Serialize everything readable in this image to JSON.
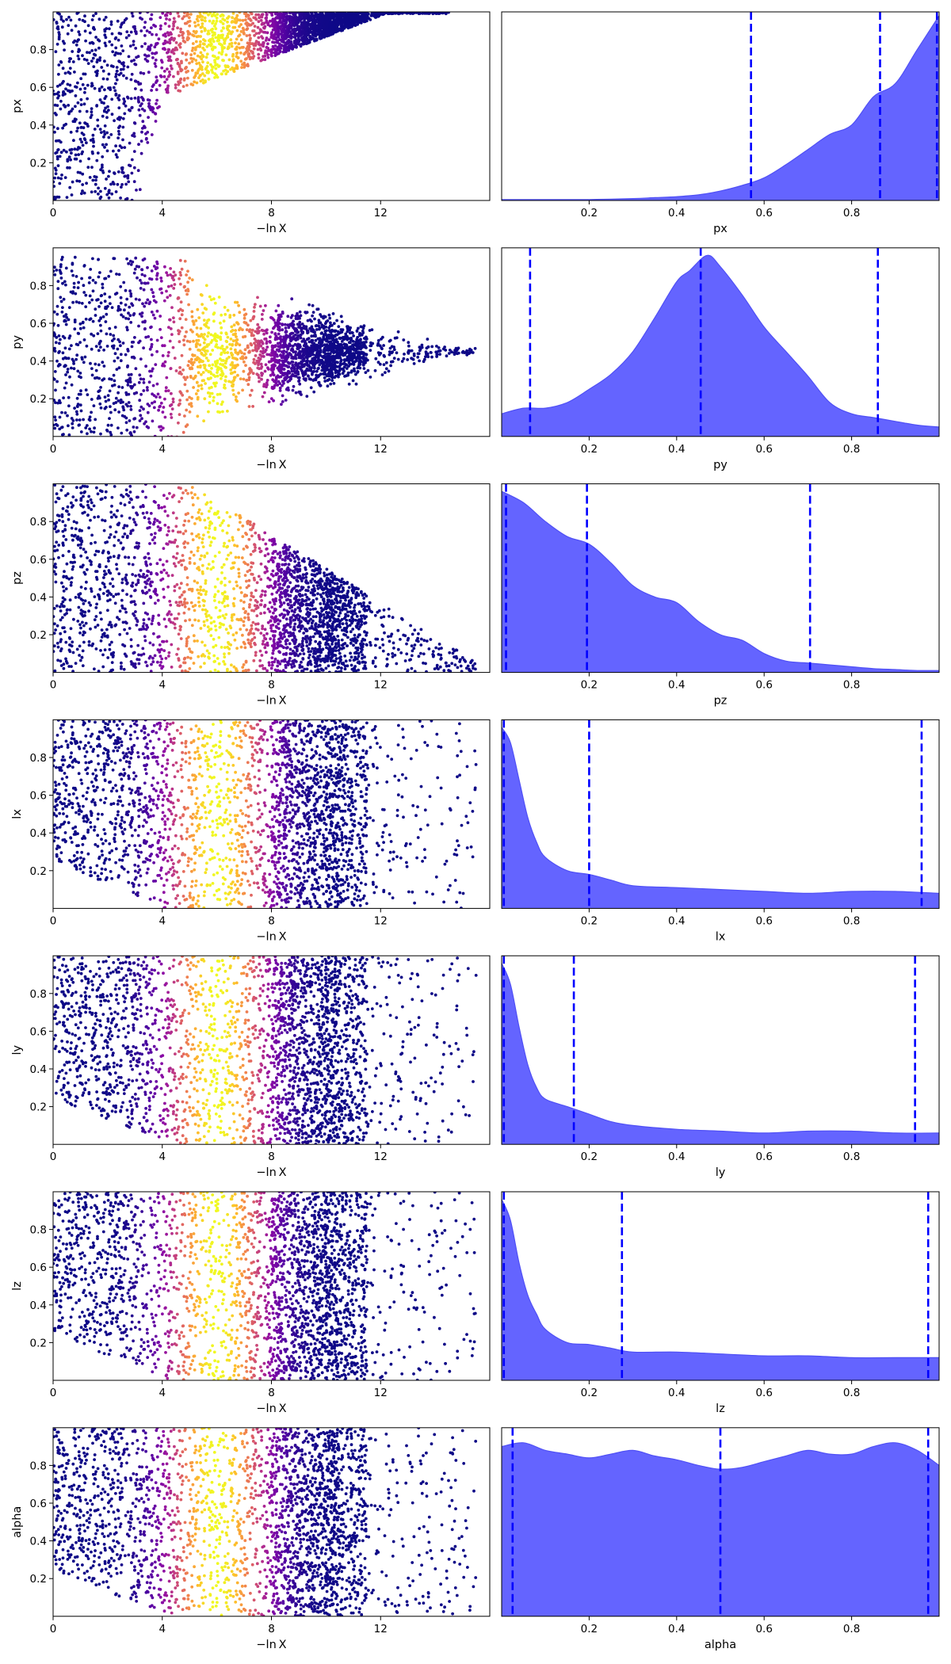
{
  "chart_data": {
    "type": "scatter",
    "layout": "7 rows x 2 columns; left column: trace scatter of parameter vs -ln X colored by posterior weight (plasma colormap); right column: filled marginal posterior density with dashed quantile lines",
    "trace_x_label": "−ln X",
    "trace_x_ticks": [
      0,
      4,
      8,
      12
    ],
    "trace_x_range": [
      0,
      16
    ],
    "y_range": [
      0,
      1
    ],
    "param_ticks": [
      0.2,
      0.4,
      0.6,
      0.8
    ],
    "param_tick_labels": [
      "0.2",
      "0.4",
      "0.6",
      "0.8"
    ],
    "scatter_colormap": "plasma",
    "density_fill_color": "#6464ff",
    "density_line_color": "#4f4ff5",
    "quantile_line_color": "#0000ff",
    "quantile_line_style": "dashed",
    "panels": [
      {
        "param": "px",
        "marginal": {
          "x": [
            0,
            0.1,
            0.2,
            0.3,
            0.35,
            0.4,
            0.45,
            0.5,
            0.55,
            0.6,
            0.65,
            0.7,
            0.75,
            0.8,
            0.85,
            0.9,
            0.95,
            1.0
          ],
          "y": [
            0.005,
            0.005,
            0.005,
            0.01,
            0.015,
            0.02,
            0.03,
            0.05,
            0.08,
            0.12,
            0.19,
            0.27,
            0.35,
            0.4,
            0.55,
            0.62,
            0.8,
            0.98
          ]
        },
        "quantiles": [
          0.57,
          0.865,
          0.995
        ]
      },
      {
        "param": "py",
        "marginal": {
          "x": [
            0,
            0.05,
            0.1,
            0.15,
            0.2,
            0.25,
            0.3,
            0.35,
            0.4,
            0.43,
            0.47,
            0.5,
            0.55,
            0.6,
            0.65,
            0.7,
            0.75,
            0.8,
            0.85,
            0.9,
            0.95,
            1.0
          ],
          "y": [
            0.12,
            0.15,
            0.15,
            0.18,
            0.25,
            0.33,
            0.45,
            0.63,
            0.82,
            0.88,
            0.96,
            0.9,
            0.75,
            0.58,
            0.45,
            0.32,
            0.18,
            0.12,
            0.1,
            0.08,
            0.06,
            0.05
          ]
        },
        "quantiles": [
          0.065,
          0.455,
          0.86
        ]
      },
      {
        "param": "pz",
        "marginal": {
          "x": [
            0,
            0.05,
            0.1,
            0.15,
            0.2,
            0.25,
            0.3,
            0.35,
            0.4,
            0.45,
            0.5,
            0.55,
            0.6,
            0.65,
            0.7,
            0.75,
            0.8,
            0.85,
            0.9,
            0.95,
            1.0
          ],
          "y": [
            0.96,
            0.9,
            0.8,
            0.72,
            0.68,
            0.58,
            0.46,
            0.4,
            0.37,
            0.27,
            0.2,
            0.17,
            0.1,
            0.06,
            0.05,
            0.04,
            0.03,
            0.02,
            0.015,
            0.01,
            0.01
          ]
        },
        "quantiles": [
          0.01,
          0.195,
          0.705
        ]
      },
      {
        "param": "lx",
        "marginal": {
          "x": [
            0,
            0.02,
            0.04,
            0.06,
            0.08,
            0.1,
            0.15,
            0.2,
            0.25,
            0.3,
            0.4,
            0.5,
            0.6,
            0.7,
            0.8,
            0.9,
            1.0
          ],
          "y": [
            0.96,
            0.88,
            0.68,
            0.48,
            0.35,
            0.27,
            0.2,
            0.18,
            0.15,
            0.12,
            0.11,
            0.1,
            0.09,
            0.08,
            0.09,
            0.09,
            0.08
          ]
        },
        "quantiles": [
          0.005,
          0.2,
          0.96
        ]
      },
      {
        "param": "ly",
        "marginal": {
          "x": [
            0,
            0.02,
            0.04,
            0.06,
            0.08,
            0.1,
            0.15,
            0.2,
            0.25,
            0.3,
            0.4,
            0.5,
            0.6,
            0.7,
            0.8,
            0.9,
            1.0
          ],
          "y": [
            0.96,
            0.85,
            0.62,
            0.42,
            0.3,
            0.24,
            0.2,
            0.16,
            0.12,
            0.1,
            0.08,
            0.07,
            0.06,
            0.07,
            0.07,
            0.06,
            0.06
          ]
        },
        "quantiles": [
          0.005,
          0.165,
          0.945
        ]
      },
      {
        "param": "lz",
        "marginal": {
          "x": [
            0,
            0.02,
            0.04,
            0.06,
            0.08,
            0.1,
            0.15,
            0.2,
            0.25,
            0.3,
            0.4,
            0.5,
            0.6,
            0.7,
            0.8,
            0.9,
            1.0
          ],
          "y": [
            0.96,
            0.85,
            0.62,
            0.45,
            0.35,
            0.27,
            0.2,
            0.19,
            0.17,
            0.15,
            0.15,
            0.14,
            0.13,
            0.13,
            0.12,
            0.12,
            0.12
          ]
        },
        "quantiles": [
          0.005,
          0.275,
          0.975
        ]
      },
      {
        "param": "alpha",
        "marginal": {
          "x": [
            0,
            0.05,
            0.1,
            0.15,
            0.2,
            0.25,
            0.3,
            0.35,
            0.4,
            0.45,
            0.5,
            0.55,
            0.6,
            0.65,
            0.7,
            0.75,
            0.8,
            0.85,
            0.9,
            0.95,
            1.0
          ],
          "y": [
            0.9,
            0.92,
            0.88,
            0.86,
            0.84,
            0.86,
            0.88,
            0.85,
            0.83,
            0.8,
            0.78,
            0.79,
            0.82,
            0.85,
            0.88,
            0.86,
            0.86,
            0.9,
            0.92,
            0.88,
            0.8
          ]
        },
        "quantiles": [
          0.025,
          0.5,
          0.975
        ]
      }
    ]
  }
}
